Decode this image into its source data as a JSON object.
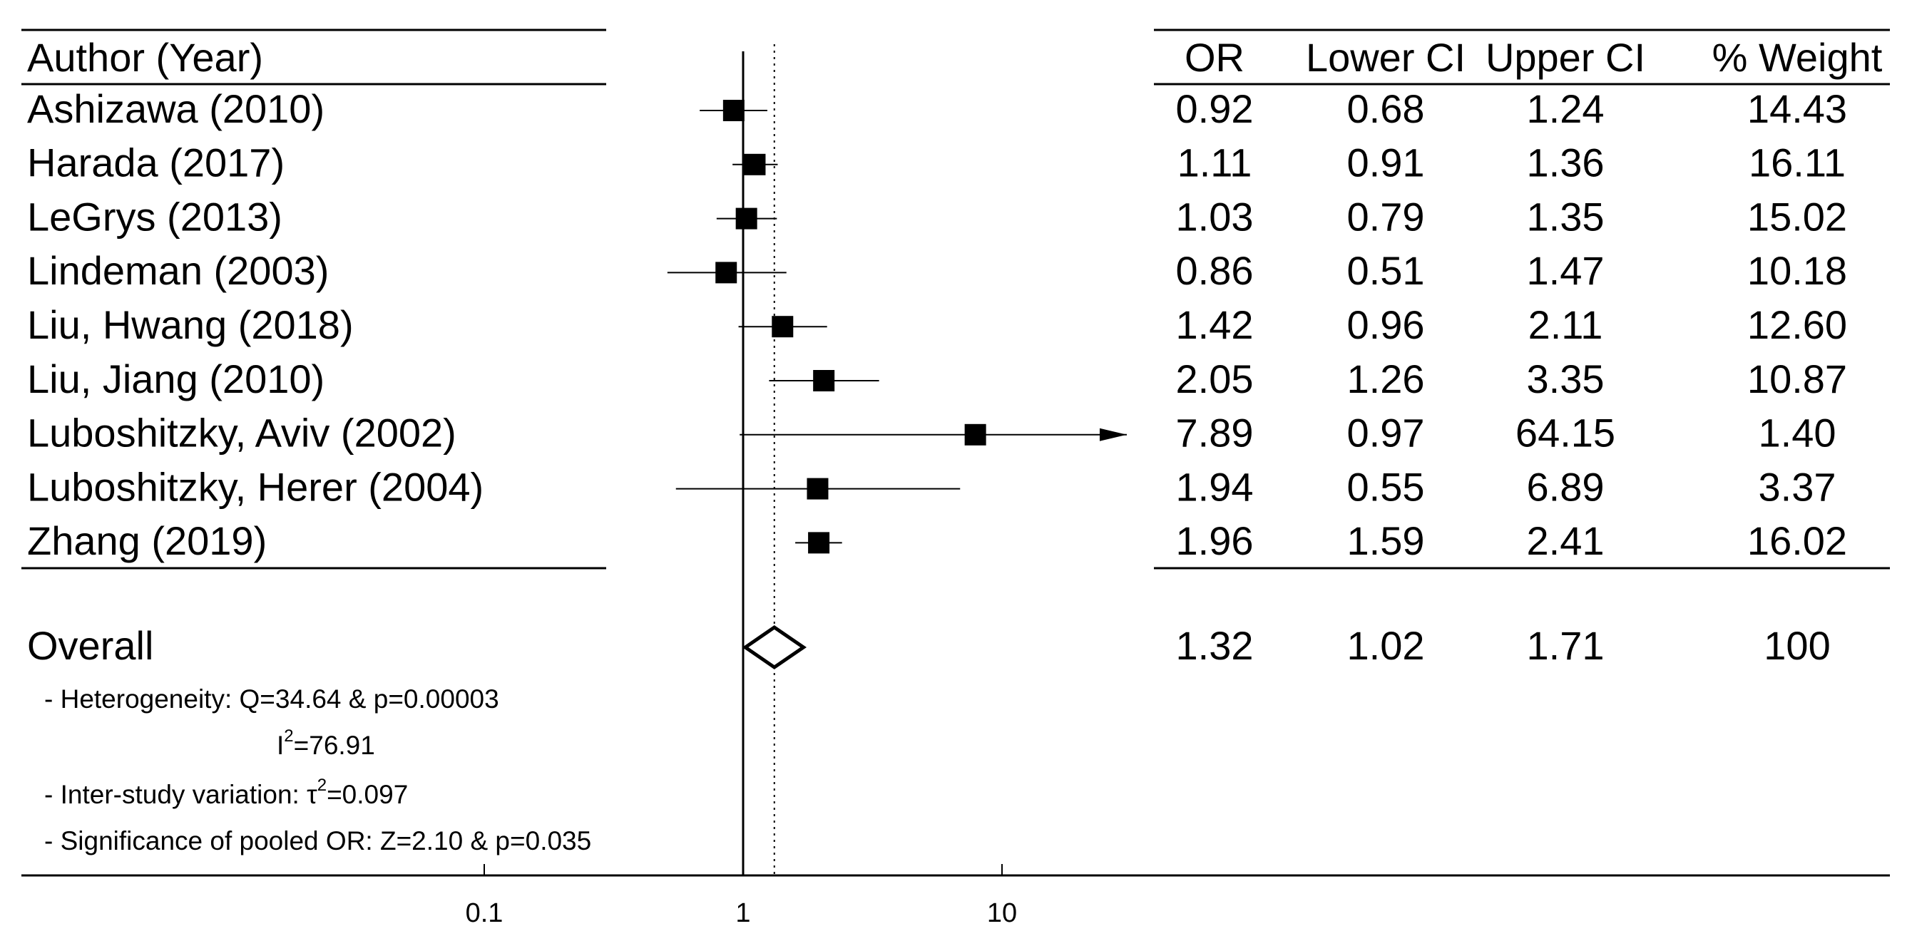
{
  "chart_data": {
    "type": "forest",
    "scale": "log",
    "xlabel": "",
    "xlim": [
      0.1,
      10
    ],
    "x_ticks": [
      {
        "value": 0.1,
        "label": "0.1"
      },
      {
        "value": 1,
        "label": "1"
      },
      {
        "value": 10,
        "label": "10"
      }
    ],
    "reference_line": 1,
    "pooled_line": 1.32,
    "headers": {
      "author": "Author (Year)",
      "or": "OR",
      "lower": "Lower CI",
      "upper": "Upper CI",
      "weight": "% Weight"
    },
    "studies": [
      {
        "author": "Ashizawa (2010)",
        "or": 0.92,
        "lower": 0.68,
        "upper": 1.24,
        "or_text": "0.92",
        "lower_text": "0.68",
        "upper_text": "1.24",
        "weight": "14.43"
      },
      {
        "author": "Harada (2017)",
        "or": 1.11,
        "lower": 0.91,
        "upper": 1.36,
        "or_text": "1.11",
        "lower_text": "0.91",
        "upper_text": "1.36",
        "weight": "16.11"
      },
      {
        "author": "LeGrys (2013)",
        "or": 1.03,
        "lower": 0.79,
        "upper": 1.35,
        "or_text": "1.03",
        "lower_text": "0.79",
        "upper_text": "1.35",
        "weight": "15.02"
      },
      {
        "author": "Lindeman (2003)",
        "or": 0.86,
        "lower": 0.51,
        "upper": 1.47,
        "or_text": "0.86",
        "lower_text": "0.51",
        "upper_text": "1.47",
        "weight": "10.18"
      },
      {
        "author": "Liu, Hwang (2018)",
        "or": 1.42,
        "lower": 0.96,
        "upper": 2.11,
        "or_text": "1.42",
        "lower_text": "0.96",
        "upper_text": "2.11",
        "weight": "12.60"
      },
      {
        "author": "Liu, Jiang (2010)",
        "or": 2.05,
        "lower": 1.26,
        "upper": 3.35,
        "or_text": "2.05",
        "lower_text": "1.26",
        "upper_text": "3.35",
        "weight": "10.87"
      },
      {
        "author": "Luboshitzky, Aviv (2002)",
        "or": 7.89,
        "lower": 0.97,
        "upper": 64.15,
        "or_text": "7.89",
        "lower_text": "0.97",
        "upper_text": "64.15",
        "weight": "1.40"
      },
      {
        "author": "Luboshitzky, Herer (2004)",
        "or": 1.94,
        "lower": 0.55,
        "upper": 6.89,
        "or_text": "1.94",
        "lower_text": "0.55",
        "upper_text": "6.89",
        "weight": "3.37"
      },
      {
        "author": "Zhang (2019)",
        "or": 1.96,
        "lower": 1.59,
        "upper": 2.41,
        "or_text": "1.96",
        "lower_text": "1.59",
        "upper_text": "2.41",
        "weight": "16.02"
      }
    ],
    "overall": {
      "label": "Overall",
      "or": 1.32,
      "lower": 1.02,
      "upper": 1.71,
      "or_text": "1.32",
      "lower_text": "1.02",
      "upper_text": "1.71",
      "weight": "100"
    },
    "stats": {
      "heterogeneity": "- Heterogeneity: Q=34.64 & p=0.00003",
      "i2_base": "I",
      "i2_sup": "2",
      "i2_value": "=76.91",
      "tau_prefix": "- Inter-study variation: ",
      "tau_base": "τ",
      "tau_sup": "2",
      "tau_value": "=0.097",
      "significance": "- Significance of pooled OR: Z=2.10 & p=0.035"
    }
  }
}
